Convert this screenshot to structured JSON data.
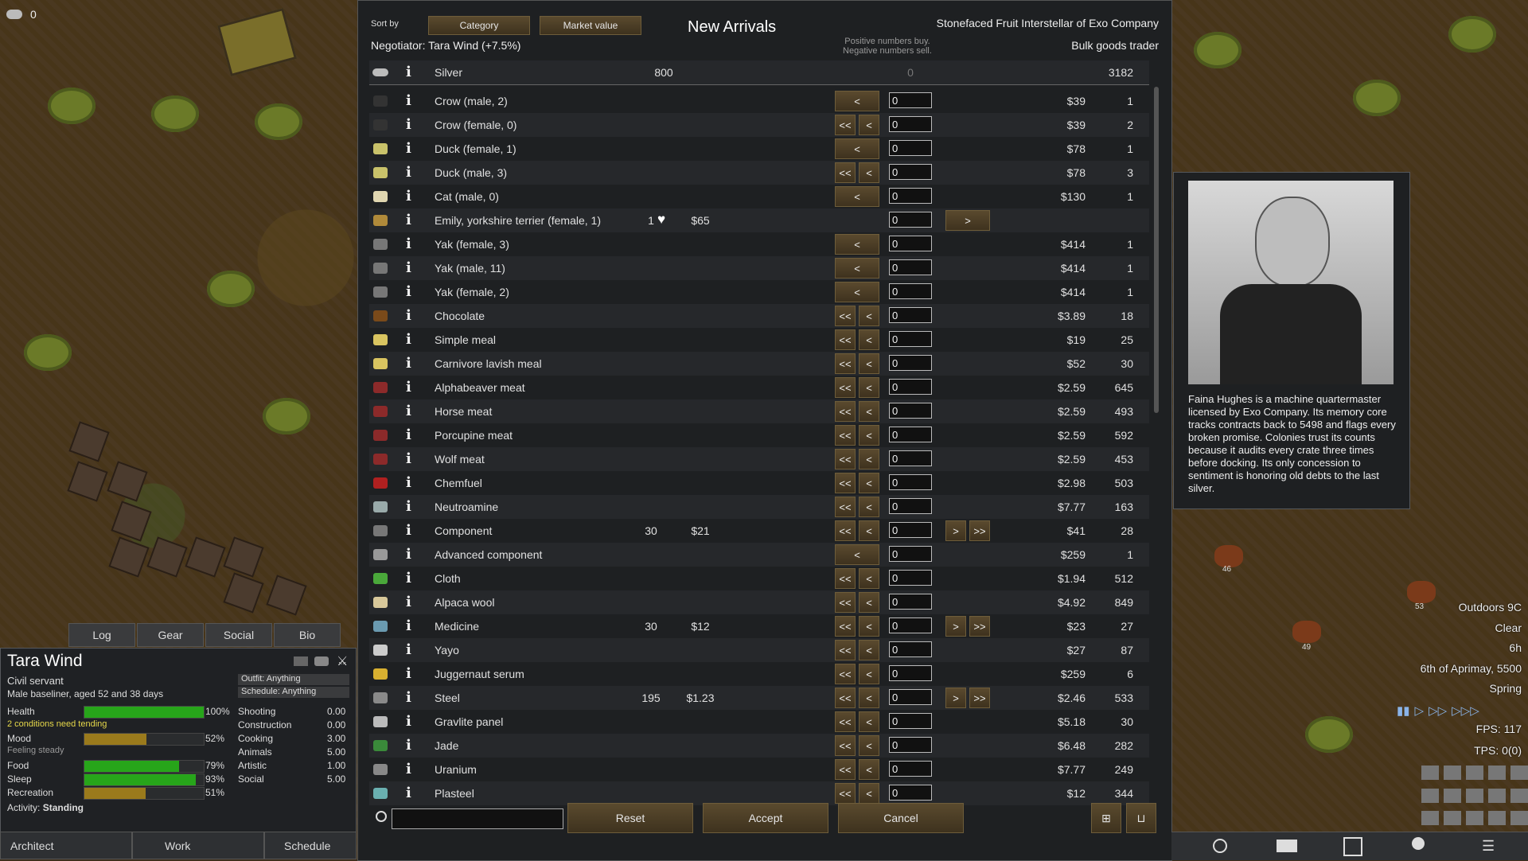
{
  "colony": {
    "silver_icon": "silver-icon",
    "silver_amount": "0"
  },
  "trade": {
    "sort_by_label": "Sort by",
    "sort_category": "Category",
    "sort_market": "Market value",
    "title": "New Arrivals",
    "trader_name": "Stonefaced Fruit Interstellar of Exo Company",
    "trader_kind": "Bulk goods trader",
    "negotiator": "Negotiator: Tara Wind (+7.5%)",
    "hint_line1": "Positive numbers buy.",
    "hint_line2": "Negative numbers sell.",
    "silver": {
      "name": "Silver",
      "colony_qty": "800",
      "value": "0",
      "trader_qty": "3182"
    },
    "rows": [
      {
        "icon": "crow-icon",
        "name": "Crow (male, 2)",
        "tq": "",
        "tp": "",
        "left": "<",
        "val": "0",
        "right": "",
        "cp": "$39",
        "cq": "1"
      },
      {
        "icon": "crow-icon",
        "name": "Crow (female, 0)",
        "tq": "",
        "tp": "",
        "left": "<<",
        "val": "0",
        "right": "",
        "cp": "$39",
        "cq": "2"
      },
      {
        "icon": "duck-icon",
        "name": "Duck (female, 1)",
        "tq": "",
        "tp": "",
        "left": "<",
        "val": "0",
        "right": "",
        "cp": "$78",
        "cq": "1"
      },
      {
        "icon": "duck-icon",
        "name": "Duck (male, 3)",
        "tq": "",
        "tp": "",
        "left": "<<",
        "val": "0",
        "right": "",
        "cp": "$78",
        "cq": "3"
      },
      {
        "icon": "cat-icon",
        "name": "Cat (male, 0)",
        "tq": "",
        "tp": "",
        "left": "<",
        "val": "0",
        "right": "",
        "cp": "$130",
        "cq": "1"
      },
      {
        "icon": "dog-icon",
        "name": "Emily, yorkshire terrier (female, 1)",
        "tq": "1",
        "tp": "$65",
        "left": "",
        "val": "0",
        "right": ">",
        "cp": "",
        "cq": "",
        "heart": true
      },
      {
        "icon": "yak-icon",
        "name": "Yak (female, 3)",
        "tq": "",
        "tp": "",
        "left": "<",
        "val": "0",
        "right": "",
        "cp": "$414",
        "cq": "1"
      },
      {
        "icon": "yak-icon",
        "name": "Yak (male, 11)",
        "tq": "",
        "tp": "",
        "left": "<",
        "val": "0",
        "right": "",
        "cp": "$414",
        "cq": "1"
      },
      {
        "icon": "yak-icon",
        "name": "Yak (female, 2)",
        "tq": "",
        "tp": "",
        "left": "<",
        "val": "0",
        "right": "",
        "cp": "$414",
        "cq": "1"
      },
      {
        "icon": "chocolate-icon",
        "name": "Chocolate",
        "tq": "",
        "tp": "",
        "left": "<<",
        "val": "0",
        "right": "",
        "cp": "$3.89",
        "cq": "18"
      },
      {
        "icon": "meal-icon",
        "name": "Simple meal",
        "tq": "",
        "tp": "",
        "left": "<<",
        "val": "0",
        "right": "",
        "cp": "$19",
        "cq": "25"
      },
      {
        "icon": "meal-icon",
        "name": "Carnivore lavish meal",
        "tq": "",
        "tp": "",
        "left": "<<",
        "val": "0",
        "right": "",
        "cp": "$52",
        "cq": "30"
      },
      {
        "icon": "meat-icon",
        "name": "Alphabeaver meat",
        "tq": "",
        "tp": "",
        "left": "<<",
        "val": "0",
        "right": "",
        "cp": "$2.59",
        "cq": "645"
      },
      {
        "icon": "meat-icon",
        "name": "Horse meat",
        "tq": "",
        "tp": "",
        "left": "<<",
        "val": "0",
        "right": "",
        "cp": "$2.59",
        "cq": "493"
      },
      {
        "icon": "meat-icon",
        "name": "Porcupine meat",
        "tq": "",
        "tp": "",
        "left": "<<",
        "val": "0",
        "right": "",
        "cp": "$2.59",
        "cq": "592"
      },
      {
        "icon": "meat-icon",
        "name": "Wolf meat",
        "tq": "",
        "tp": "",
        "left": "<<",
        "val": "0",
        "right": "",
        "cp": "$2.59",
        "cq": "453"
      },
      {
        "icon": "chemfuel-icon",
        "name": "Chemfuel",
        "tq": "",
        "tp": "",
        "left": "<<",
        "val": "0",
        "right": "",
        "cp": "$2.98",
        "cq": "503"
      },
      {
        "icon": "neutroamine-icon",
        "name": "Neutroamine",
        "tq": "",
        "tp": "",
        "left": "<<",
        "val": "0",
        "right": "",
        "cp": "$7.77",
        "cq": "163"
      },
      {
        "icon": "component-icon",
        "name": "Component",
        "tq": "30",
        "tp": "$21",
        "left": "<<",
        "val": "0",
        "right": ">>",
        "cp": "$41",
        "cq": "28"
      },
      {
        "icon": "advanced-component-icon",
        "name": "Advanced component",
        "tq": "",
        "tp": "",
        "left": "<",
        "val": "0",
        "right": "",
        "cp": "$259",
        "cq": "1"
      },
      {
        "icon": "cloth-icon",
        "name": "Cloth",
        "tq": "",
        "tp": "",
        "left": "<<",
        "val": "0",
        "right": "",
        "cp": "$1.94",
        "cq": "512"
      },
      {
        "icon": "wool-icon",
        "name": "Alpaca wool",
        "tq": "",
        "tp": "",
        "left": "<<",
        "val": "0",
        "right": "",
        "cp": "$4.92",
        "cq": "849"
      },
      {
        "icon": "medicine-icon",
        "name": "Medicine",
        "tq": "30",
        "tp": "$12",
        "left": "<<",
        "val": "0",
        "right": ">>",
        "cp": "$23",
        "cq": "27"
      },
      {
        "icon": "yayo-icon",
        "name": "Yayo",
        "tq": "",
        "tp": "",
        "left": "<<",
        "val": "0",
        "right": "",
        "cp": "$27",
        "cq": "87"
      },
      {
        "icon": "serum-icon",
        "name": "Juggernaut serum",
        "tq": "",
        "tp": "",
        "left": "<<",
        "val": "0",
        "right": "",
        "cp": "$259",
        "cq": "6"
      },
      {
        "icon": "steel-icon",
        "name": "Steel",
        "tq": "195",
        "tp": "$1.23",
        "left": "<<",
        "val": "0",
        "right": ">>",
        "cp": "$2.46",
        "cq": "533"
      },
      {
        "icon": "gravlite-icon",
        "name": "Gravlite panel",
        "tq": "",
        "tp": "",
        "left": "<<",
        "val": "0",
        "right": "",
        "cp": "$5.18",
        "cq": "30"
      },
      {
        "icon": "jade-icon",
        "name": "Jade",
        "tq": "",
        "tp": "",
        "left": "<<",
        "val": "0",
        "right": "",
        "cp": "$6.48",
        "cq": "282"
      },
      {
        "icon": "uranium-icon",
        "name": "Uranium",
        "tq": "",
        "tp": "",
        "left": "<<",
        "val": "0",
        "right": "",
        "cp": "$7.77",
        "cq": "249"
      },
      {
        "icon": "plasteel-icon",
        "name": "Plasteel",
        "tq": "",
        "tp": "",
        "left": "<<",
        "val": "0",
        "right": "",
        "cp": "$12",
        "cq": "344"
      }
    ],
    "reset": "Reset",
    "accept": "Accept",
    "cancel": "Cancel"
  },
  "trader_card": {
    "bio": "Faina Hughes is a machine quartermaster licensed by Exo Company. Its memory core tracks contracts back to 5498 and flags every broken promise. Colonies trust its counts because it audits every crate three times before docking. Its only concession to sentiment is honoring old debts to the last silver."
  },
  "pawn": {
    "tabs": [
      "Log",
      "Gear",
      "Social",
      "Bio"
    ],
    "name": "Tara Wind",
    "title": "Civil servant",
    "desc": "Male baseliner, aged 52 and 38 days",
    "outfit": "Outfit: Anything",
    "schedule": "Schedule: Anything",
    "needs": [
      {
        "label": "Health",
        "pct": "100%",
        "fill": 1.0,
        "color": "#27a51a"
      },
      {
        "label": "Mood",
        "pct": "52%",
        "fill": 0.52,
        "color": "#9a7a1c"
      },
      {
        "label": "Food",
        "pct": "79%",
        "fill": 0.79,
        "color": "#27a51a"
      },
      {
        "label": "Sleep",
        "pct": "93%",
        "fill": 0.93,
        "color": "#27a51a"
      },
      {
        "label": "Recreation",
        "pct": "51%",
        "fill": 0.51,
        "color": "#9a7a1c"
      }
    ],
    "health_note": "2 conditions need tending",
    "mood_note": "Feeling steady",
    "skills": [
      {
        "label": "Shooting",
        "val": "0.00"
      },
      {
        "label": "Construction",
        "val": "0.00"
      },
      {
        "label": "Cooking",
        "val": "3.00"
      },
      {
        "label": "Animals",
        "val": "5.00"
      },
      {
        "label": "Artistic",
        "val": "1.00"
      },
      {
        "label": "Social",
        "val": "5.00"
      }
    ],
    "activity_label": "Activity:",
    "activity": "Standing"
  },
  "bottom_tabs": [
    "Architect",
    "Work",
    "Schedule"
  ],
  "hud": {
    "outdoors": "Outdoors 9C",
    "weather": "Clear",
    "hour": "6h",
    "date": "6th of Aprimay, 5500",
    "season": "Spring",
    "fps": "FPS: 117",
    "tps": "TPS: 0(0)"
  },
  "map_markers": [
    "46",
    "53",
    "49"
  ]
}
